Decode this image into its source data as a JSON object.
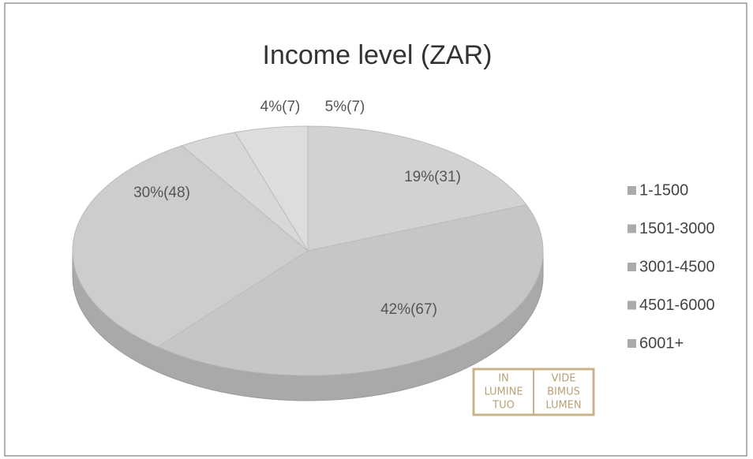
{
  "chart_data": {
    "type": "pie",
    "title": "Income level (ZAR)",
    "categories": [
      "1-1500",
      "1501-3000",
      "3001-4500",
      "4501-6000",
      "6001+"
    ],
    "values": [
      19,
      42,
      30,
      4,
      5
    ],
    "value_labels": [
      "19%(31)",
      "42%(67)",
      "30%(48)",
      "4%(7)",
      "5%(7)"
    ],
    "colors": [
      "#d2d2d2",
      "#c6c6c6",
      "#cdcdcd",
      "#d8d8d8",
      "#dddddd"
    ],
    "legend": "right",
    "watermark": [
      "IN",
      "LUMINE",
      "TUO",
      "VIDE",
      "BIMUS",
      "LUMEN"
    ]
  }
}
